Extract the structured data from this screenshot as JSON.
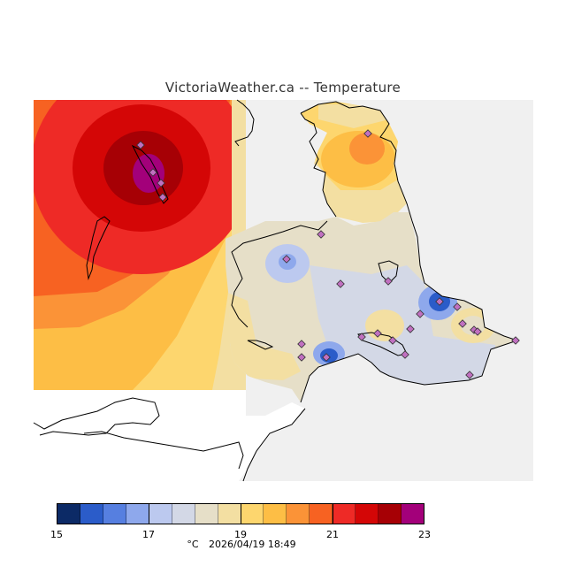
{
  "title": "VictoriaWeather.ca -- Temperature",
  "legend": {
    "min": 15,
    "max": 23,
    "ticks": [
      "15",
      "17",
      "19",
      "21",
      "23"
    ],
    "colors": [
      "#0c2a66",
      "#2b5cc9",
      "#567fe0",
      "#8ea8ec",
      "#bcc9ef",
      "#d3d8e6",
      "#e6dfc8",
      "#f3dfa2",
      "#fdd66e",
      "#fdbe45",
      "#fb9337",
      "#f76222",
      "#ee2a26",
      "#d40606",
      "#a60005",
      "#a3007a"
    ]
  },
  "footer": {
    "unit": "°C",
    "timestamp": "2026/04/19 18:49"
  },
  "colors": {
    "background": "#f0f0f0",
    "land_outline": "#000000",
    "station_marker": "#c070c0"
  }
}
